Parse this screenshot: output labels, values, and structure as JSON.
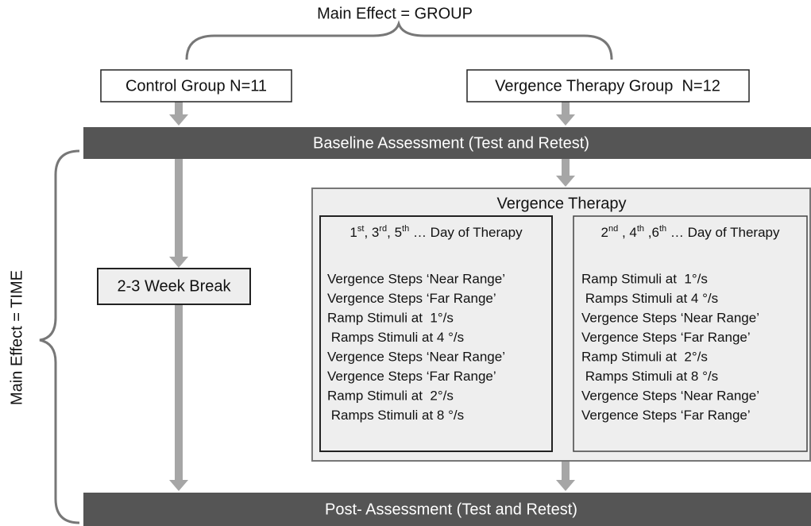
{
  "top_label": "Main Effect = GROUP",
  "side_label": "Main Effect = TIME",
  "groups": [
    "Control Group N=11",
    "Vergence Therapy Group  N=12"
  ],
  "baseline": "Baseline Assessment (Test and Retest)",
  "break": "2-3 Week Break",
  "therapy": {
    "title": "Vergence Therapy",
    "columns": [
      {
        "heading": [
          "1",
          "st",
          ", 3",
          "rd",
          ", 5",
          "th",
          " … Day of Therapy"
        ],
        "items": [
          "Vergence Steps ‘Near Range’",
          "Vergence Steps ‘Far Range’",
          "Ramp Stimuli at  1°/s",
          " Ramps Stimuli at 4 °/s",
          "Vergence Steps ‘Near Range’",
          "Vergence Steps ‘Far Range’",
          "Ramp Stimuli at  2°/s",
          " Ramps Stimuli at 8 °/s"
        ]
      },
      {
        "heading": [
          "2",
          "nd",
          " , 4",
          "th",
          " ,6",
          "th",
          " … Day of Therapy"
        ],
        "items": [
          "Ramp Stimuli at  1°/s",
          " Ramps Stimuli at 4 °/s",
          "Vergence Steps ‘Near Range’",
          "Vergence Steps ‘Far Range’",
          "Ramp Stimuli at  2°/s",
          " Ramps Stimuli at 8 °/s",
          "Vergence Steps ‘Near Range’",
          "Vergence Steps ‘Far Range’"
        ]
      }
    ]
  },
  "post": "Post- Assessment (Test and Retest)"
}
